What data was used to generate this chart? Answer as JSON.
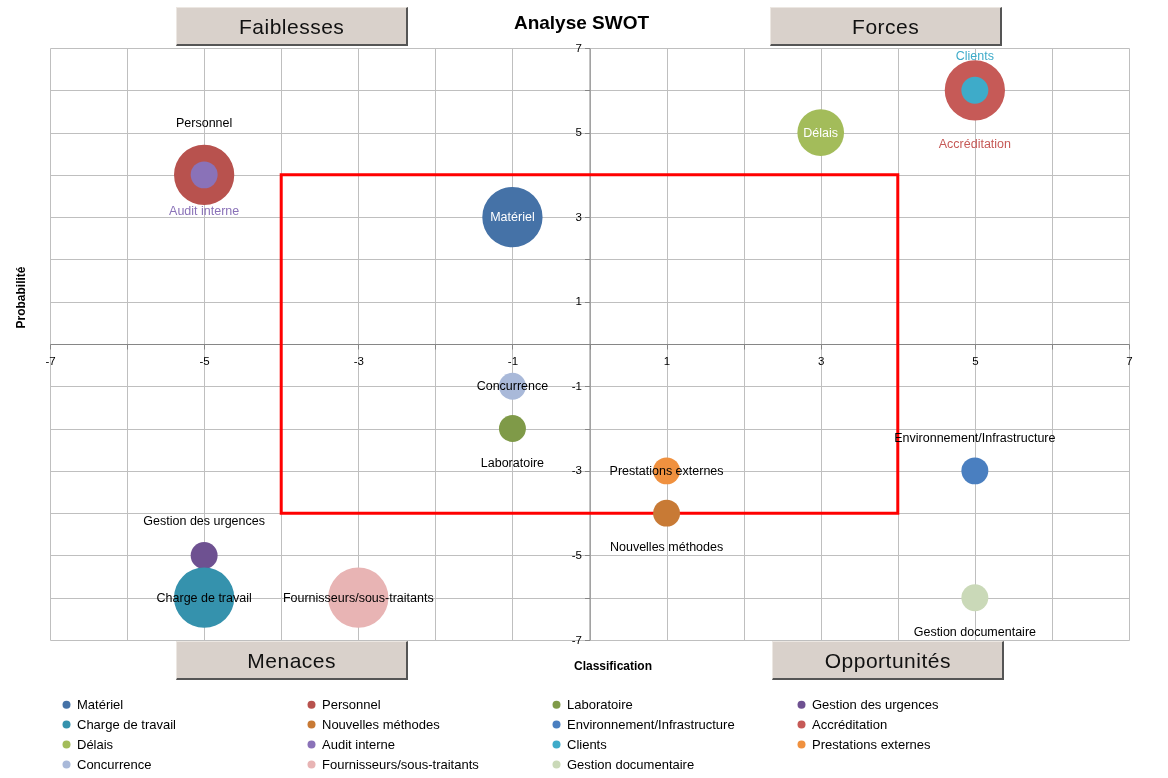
{
  "chart_data": {
    "type": "bubble",
    "title": "Analyse SWOT",
    "xlabel": "Classification",
    "ylabel": "Probabilité",
    "annotations": [
      "Faiblesses",
      "Forces",
      "Menaces",
      "Opportunités"
    ],
    "xlim": [
      -7,
      7
    ],
    "ylim": [
      -7,
      7
    ],
    "xticks": [
      -7,
      {
        "value": -6,
        "label": null
      },
      -5,
      {
        "value": -4,
        "label": null
      },
      -3,
      {
        "value": -2,
        "label": null
      },
      -1,
      {
        "value": 0,
        "label": null
      },
      1,
      {
        "value": 2,
        "label": null
      },
      3,
      {
        "value": 4,
        "label": null
      },
      5,
      {
        "value": 6,
        "label": null
      },
      7
    ],
    "yticks": [
      -7,
      {
        "value": -6,
        "label": null
      },
      -5,
      {
        "value": -4,
        "label": null
      },
      -3,
      {
        "value": -2,
        "label": null
      },
      -1,
      {
        "value": 0,
        "label": null
      },
      1,
      {
        "value": 2,
        "label": null
      },
      3,
      {
        "value": 4,
        "label": null
      },
      5,
      {
        "value": 6,
        "label": null
      },
      7
    ],
    "grid": true,
    "legend": "bottom",
    "marker": "circle",
    "series": [
      {
        "name": "Matériel",
        "color": "#4572a7",
        "x": [
          -1
        ],
        "values": [
          3
        ],
        "sizes": [
          1
        ]
      },
      {
        "name": "Personnel",
        "color": "#b8524e",
        "x": [
          -5
        ],
        "values": [
          4
        ],
        "sizes": [
          1
        ]
      },
      {
        "name": "Laboratoire",
        "color": "#7f9a48",
        "x": [
          -1
        ],
        "values": [
          -2
        ],
        "sizes": [
          0.2
        ]
      },
      {
        "name": "Gestion des urgences",
        "color": "#6e5191",
        "x": [
          -5
        ],
        "values": [
          -5
        ],
        "sizes": [
          0.2
        ]
      },
      {
        "name": "Charge de travail",
        "color": "#3592ad",
        "x": [
          -5
        ],
        "values": [
          -6
        ],
        "sizes": [
          1
        ]
      },
      {
        "name": "Nouvelles méthodes",
        "color": "#c87a35",
        "x": [
          1
        ],
        "values": [
          -4
        ],
        "sizes": [
          0.2
        ]
      },
      {
        "name": "Environnement/Infrastructure",
        "color": "#4a7fc0",
        "x": [
          5
        ],
        "values": [
          -3
        ],
        "sizes": [
          0.2
        ]
      },
      {
        "name": "Accréditation",
        "color": "#c65a57",
        "x": [
          5
        ],
        "values": [
          6
        ],
        "sizes": [
          1
        ]
      },
      {
        "name": "Délais",
        "color": "#a3bc5a",
        "x": [
          3
        ],
        "values": [
          5
        ],
        "sizes": [
          0.6
        ]
      },
      {
        "name": "Audit interne",
        "color": "#8a72b8",
        "x": [
          -5
        ],
        "values": [
          4
        ],
        "sizes": [
          0.2
        ]
      },
      {
        "name": "Clients",
        "color": "#3eabc9",
        "x": [
          5
        ],
        "values": [
          6
        ],
        "sizes": [
          0.2
        ]
      },
      {
        "name": "Prestations externes",
        "color": "#f0913f",
        "x": [
          1
        ],
        "values": [
          -3
        ],
        "sizes": [
          0.2
        ]
      },
      {
        "name": "Concurrence",
        "color": "#a9b9d9",
        "x": [
          -1
        ],
        "values": [
          -1
        ],
        "sizes": [
          0.2
        ]
      },
      {
        "name": "Fournisseurs/sous-traitants",
        "color": "#e8b4b4",
        "x": [
          -3
        ],
        "values": [
          -6
        ],
        "sizes": [
          1
        ]
      },
      {
        "name": "Gestion documentaire",
        "color": "#cad9b8",
        "x": [
          5
        ],
        "values": [
          -6
        ],
        "sizes": [
          0.2
        ]
      }
    ]
  }
}
